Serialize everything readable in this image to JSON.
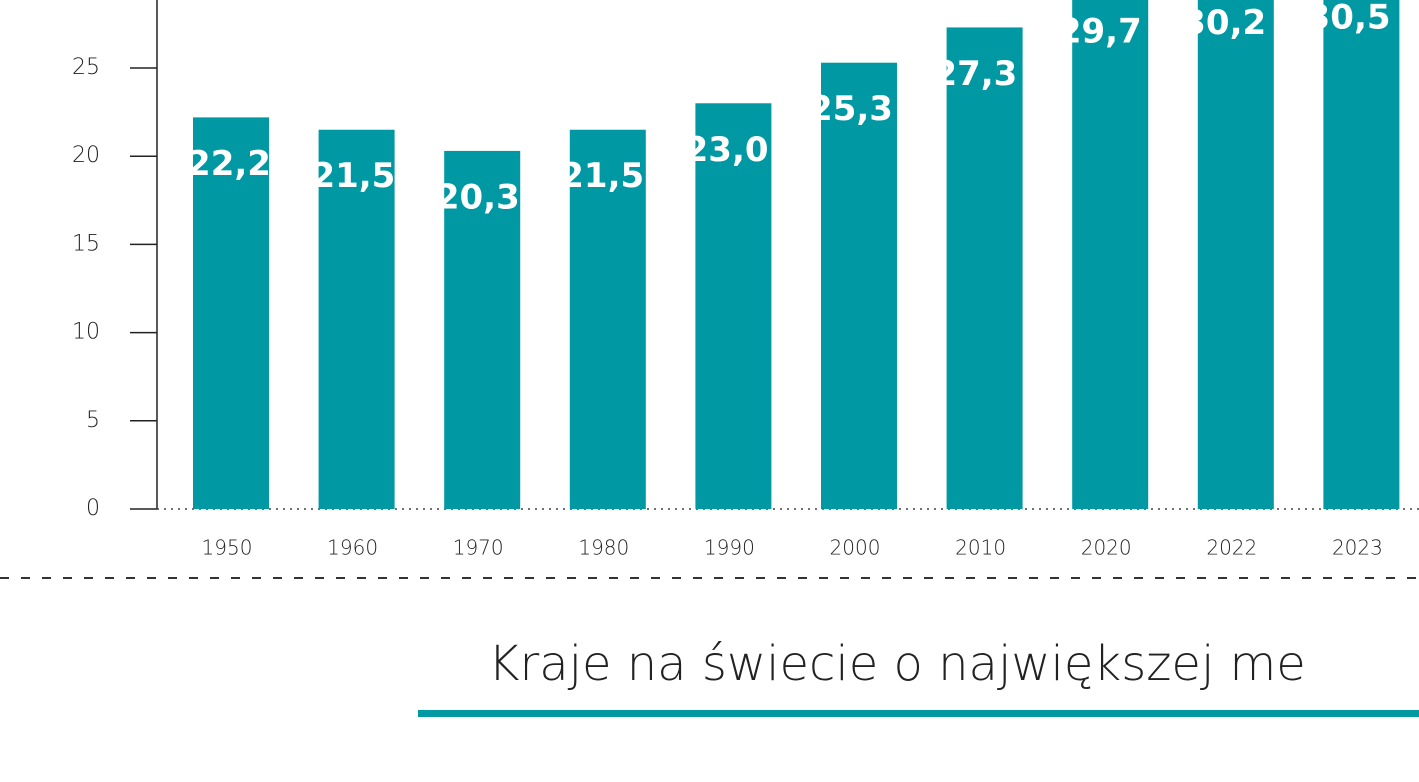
{
  "chart_data": {
    "type": "bar",
    "categories": [
      "1950",
      "1960",
      "1970",
      "1980",
      "1990",
      "2000",
      "2010",
      "2020",
      "2022",
      "2023"
    ],
    "values": [
      22.2,
      21.5,
      20.3,
      21.5,
      23.0,
      25.3,
      27.3,
      29.7,
      30.2,
      30.5
    ],
    "value_labels": [
      "22,2",
      "21,5",
      "20,3",
      "21,5",
      "23,0",
      "25,3",
      "27,3",
      "29,7",
      "30,2",
      "30,5"
    ],
    "color": "#0099a3",
    "ylim": [
      0,
      30
    ],
    "yticks": [
      0,
      5,
      10,
      15,
      20,
      25
    ],
    "grid": false
  },
  "section_title": "Kraje na świecie o największej me"
}
